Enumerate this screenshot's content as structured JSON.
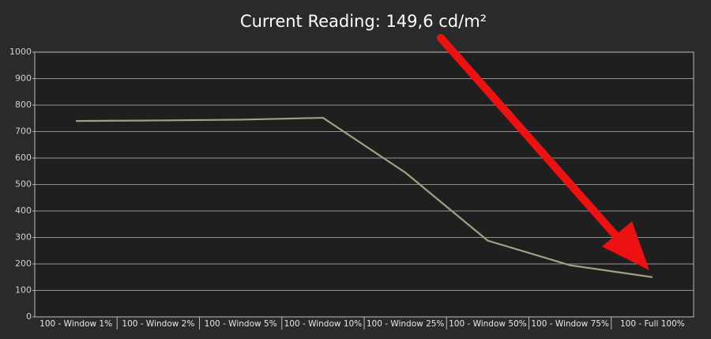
{
  "chart_data": {
    "type": "line",
    "title": "Current Reading: 149,6 cd/m²",
    "categories": [
      "100 - Window 1%",
      "100 - Window 2%",
      "100 - Window 5%",
      "100 - Window 10%",
      "100 - Window 25%",
      "100 - Window 50%",
      "100 - Window 75%",
      "100 - Full 100%"
    ],
    "values": [
      740,
      742,
      745,
      752,
      545,
      288,
      195,
      150
    ],
    "color": "#a3a184",
    "ylim": [
      0,
      1000
    ],
    "yticks": [
      0,
      100,
      200,
      300,
      400,
      500,
      600,
      700,
      800,
      900,
      1000
    ],
    "grid": true
  }
}
